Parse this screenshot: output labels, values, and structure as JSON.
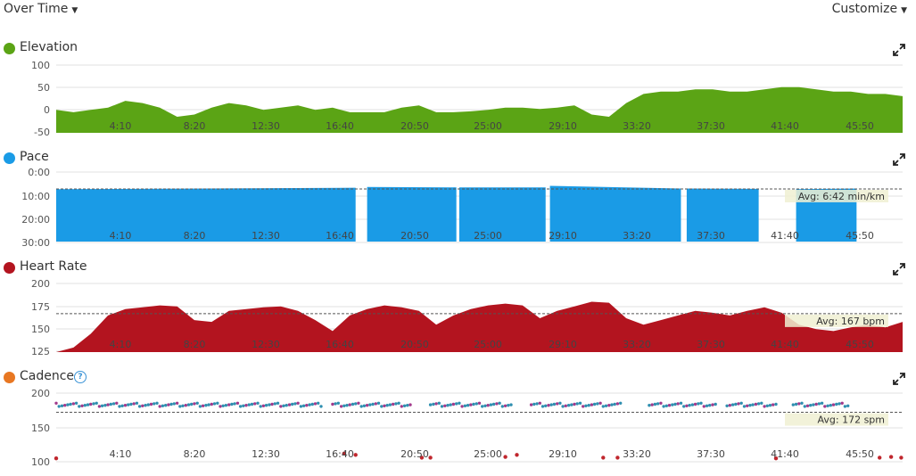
{
  "toolbar": {
    "view_label": "Over Time",
    "customize_label": "Customize"
  },
  "x_ticks": [
    "4:10",
    "8:20",
    "12:30",
    "16:40",
    "20:50",
    "25:00",
    "29:10",
    "33:20",
    "37:30",
    "41:40",
    "45:50"
  ],
  "chart_data": [
    {
      "type": "area",
      "title": "Elevation",
      "color": "#5ba415",
      "y_ticks": [
        "100",
        "50",
        "0",
        "-50"
      ],
      "ylim": [
        -50,
        100
      ],
      "xlim": [
        0,
        2940
      ],
      "x": [
        0,
        60,
        120,
        180,
        240,
        300,
        360,
        420,
        480,
        540,
        600,
        660,
        720,
        780,
        840,
        900,
        960,
        1020,
        1080,
        1140,
        1200,
        1260,
        1320,
        1380,
        1440,
        1500,
        1560,
        1620,
        1680,
        1740,
        1800,
        1860,
        1920,
        1980,
        2040,
        2100,
        2160,
        2220,
        2280,
        2340,
        2400,
        2460,
        2520,
        2580,
        2640,
        2700,
        2760,
        2820,
        2880,
        2940
      ],
      "values": [
        0,
        -5,
        0,
        5,
        20,
        15,
        5,
        -15,
        -10,
        5,
        15,
        10,
        0,
        5,
        10,
        0,
        5,
        -5,
        -5,
        -5,
        5,
        10,
        -5,
        -5,
        -3,
        0,
        5,
        5,
        2,
        5,
        10,
        -10,
        -15,
        15,
        35,
        40,
        40,
        45,
        45,
        40,
        40,
        45,
        50,
        50,
        45,
        40,
        40,
        35,
        35,
        30
      ],
      "grid": true
    },
    {
      "type": "area",
      "title": "Pace",
      "color": "#1a9be6",
      "y_ticks": [
        "0:00",
        "10:00",
        "20:00",
        "30:00"
      ],
      "ylim": [
        "0:00",
        "30:00"
      ],
      "xlim": [
        0,
        2940
      ],
      "segments": [
        {
          "x": [
            0,
            1040
          ],
          "pace": [
            "6:50",
            "6:10"
          ]
        },
        {
          "x": [
            1080,
            1390
          ],
          "pace": [
            "5:50",
            "6:00"
          ]
        },
        {
          "x": [
            1400,
            1700
          ],
          "pace": [
            "6:00",
            "6:00"
          ]
        },
        {
          "x": [
            1715,
            2170
          ],
          "pace": [
            "5:20",
            "6:30"
          ]
        },
        {
          "x": [
            2190,
            2440
          ],
          "pace": [
            "6:30",
            "6:40"
          ]
        },
        {
          "x": [
            2570,
            2780
          ],
          "pace": [
            "6:50",
            "6:30"
          ]
        }
      ],
      "average_label": "Avg: 6:42 min/km",
      "grid": true
    },
    {
      "type": "area",
      "title": "Heart Rate",
      "color": "#b3141f",
      "y_ticks": [
        "200",
        "175",
        "150",
        "125"
      ],
      "ylim": [
        125,
        200
      ],
      "xlim": [
        0,
        2940
      ],
      "x": [
        0,
        60,
        120,
        180,
        240,
        300,
        360,
        420,
        480,
        540,
        600,
        660,
        720,
        780,
        840,
        900,
        960,
        1020,
        1080,
        1140,
        1200,
        1260,
        1320,
        1380,
        1440,
        1500,
        1560,
        1620,
        1680,
        1740,
        1800,
        1860,
        1920,
        1980,
        2040,
        2100,
        2160,
        2220,
        2280,
        2340,
        2400,
        2460,
        2520,
        2580,
        2640,
        2700,
        2760,
        2820,
        2880,
        2940
      ],
      "values": [
        125,
        130,
        145,
        165,
        172,
        174,
        176,
        175,
        160,
        158,
        170,
        172,
        174,
        175,
        170,
        160,
        148,
        165,
        172,
        176,
        174,
        170,
        155,
        165,
        172,
        176,
        178,
        176,
        162,
        170,
        175,
        180,
        179,
        162,
        155,
        160,
        165,
        170,
        168,
        165,
        170,
        174,
        168,
        155,
        150,
        148,
        152,
        155,
        152,
        158
      ],
      "average_label": "Avg: 167 bpm",
      "grid": true
    },
    {
      "type": "scatter",
      "title": "Cadence",
      "color": "#e87722",
      "y_ticks": [
        "200",
        "150",
        "100"
      ],
      "ylim": [
        100,
        200
      ],
      "xlim": [
        0,
        2940
      ],
      "run_bands": [
        [
          0,
          920
        ],
        [
          960,
          1230
        ],
        [
          1300,
          1580
        ],
        [
          1650,
          1960
        ],
        [
          2060,
          2290
        ],
        [
          2330,
          2500
        ],
        [
          2560,
          2750
        ]
      ],
      "run_value": 183,
      "walk_points": [
        [
          0,
          105
        ],
        [
          1000,
          112
        ],
        [
          1040,
          110
        ],
        [
          1270,
          106
        ],
        [
          1300,
          106
        ],
        [
          1560,
          107
        ],
        [
          1600,
          110
        ],
        [
          1900,
          106
        ],
        [
          1950,
          106
        ],
        [
          2500,
          105
        ],
        [
          2860,
          106
        ],
        [
          2900,
          107
        ],
        [
          2935,
          106
        ]
      ],
      "average_label": "Avg: 172 spm",
      "grid": true
    }
  ]
}
